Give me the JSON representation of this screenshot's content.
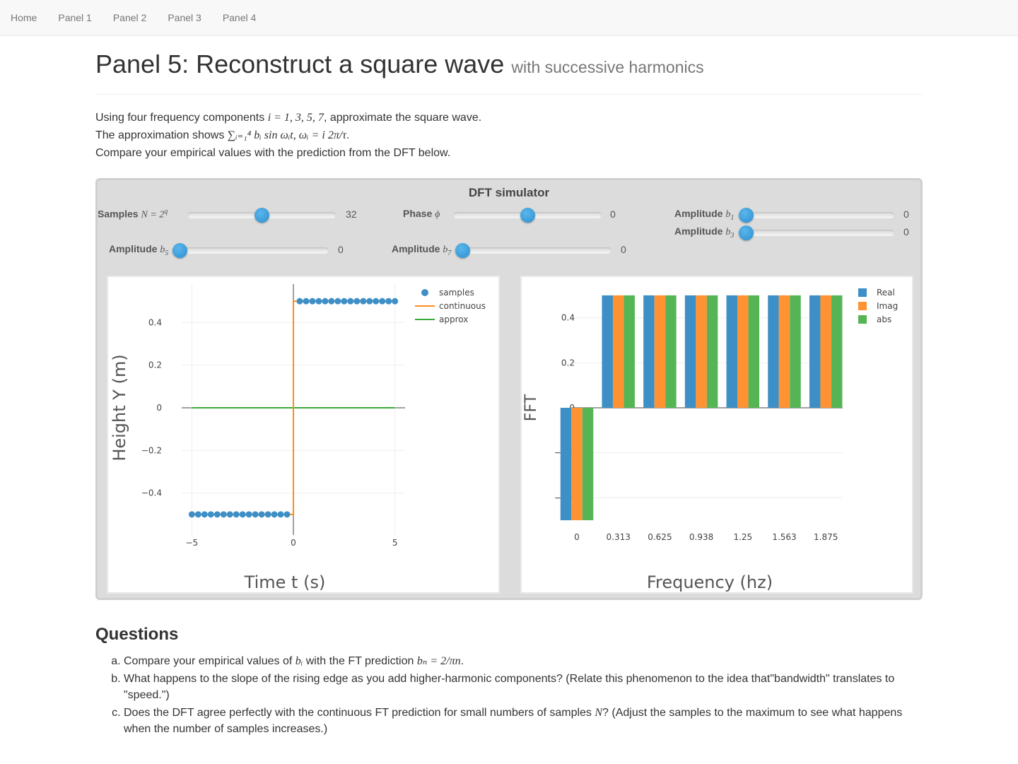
{
  "nav": {
    "items": [
      "Home",
      "Panel 1",
      "Panel 2",
      "Panel 3",
      "Panel 4"
    ]
  },
  "header": {
    "title": "Panel 5: Reconstruct a square wave",
    "subtitle": "with successive harmonics"
  },
  "intro": {
    "line1_prefix": "Using four frequency components ",
    "line1_math": "i = 1, 3, 5, 7",
    "line1_suffix": ", approximate the square wave.",
    "line2_prefix": "The approximation shows ",
    "line2_math": "∑ᵢ₌₁⁴ bᵢ sin ωᵢt, ωᵢ = i 2π/τ",
    "line2_suffix": ".",
    "line3": "Compare your empirical values with the prediction from the DFT below."
  },
  "simulator": {
    "title": "DFT simulator",
    "controls": {
      "samples": {
        "label": "Samples",
        "math": "N = 2",
        "sup": "q",
        "value": "32",
        "level": 0.5
      },
      "phase": {
        "label": "Phase",
        "math": "ϕ",
        "value": "0",
        "level": 0.5
      },
      "amp_b1": {
        "label": "Amplitude",
        "math": "b",
        "sub": "1",
        "value": "0",
        "level": 0
      },
      "amp_b3": {
        "label": "Amplitude",
        "math": "b",
        "sub": "3",
        "value": "0",
        "level": 0
      },
      "amp_b5": {
        "label": "Amplitude",
        "math": "b",
        "sub": "5",
        "value": "0",
        "level": 0
      },
      "amp_b7": {
        "label": "Amplitude",
        "math": "b",
        "sub": "7",
        "value": "0",
        "level": 0
      }
    },
    "accent_color": "#3498db"
  },
  "chart_data": [
    {
      "type": "line",
      "xlabel": "Time t (s)",
      "ylabel": "Height Y (m)",
      "xlim": [
        -5,
        5
      ],
      "ylim": [
        -0.58,
        0.58
      ],
      "xticks": [
        "−5",
        "0",
        "5"
      ],
      "yticks": [
        "0.4",
        "0.2",
        "0",
        "−0.2",
        "−0.4"
      ],
      "grid": true,
      "legend_position": "top-right",
      "series": [
        {
          "name": "samples",
          "kind": "markers",
          "color": "#3d8fc6",
          "x": [
            -5.0,
            -4.6875,
            -4.375,
            -4.0625,
            -3.75,
            -3.4375,
            -3.125,
            -2.8125,
            -2.5,
            -2.1875,
            -1.875,
            -1.5625,
            -1.25,
            -0.9375,
            -0.625,
            -0.3125,
            0.3125,
            0.625,
            0.9375,
            1.25,
            1.5625,
            1.875,
            2.1875,
            2.5,
            2.8125,
            3.125,
            3.4375,
            3.75,
            4.0625,
            4.375,
            4.6875,
            5.0
          ],
          "y": [
            -0.5,
            -0.5,
            -0.5,
            -0.5,
            -0.5,
            -0.5,
            -0.5,
            -0.5,
            -0.5,
            -0.5,
            -0.5,
            -0.5,
            -0.5,
            -0.5,
            -0.5,
            -0.5,
            0.5,
            0.5,
            0.5,
            0.5,
            0.5,
            0.5,
            0.5,
            0.5,
            0.5,
            0.5,
            0.5,
            0.5,
            0.5,
            0.5,
            0.5,
            0.5
          ]
        },
        {
          "name": "continuous",
          "kind": "line",
          "color": "#ff8c1a",
          "x": [
            -5,
            0,
            0,
            5
          ],
          "y": [
            -0.5,
            -0.5,
            0.5,
            0.5
          ]
        },
        {
          "name": "approx",
          "kind": "line",
          "color": "#3aaa3a",
          "x": [
            -5,
            5
          ],
          "y": [
            0,
            0
          ]
        }
      ]
    },
    {
      "type": "bar",
      "xlabel": "Frequency (hz)",
      "ylabel": "FFT",
      "categories": [
        "0",
        "0.313",
        "0.625",
        "0.938",
        "1.25",
        "1.563",
        "1.875"
      ],
      "yticks": [
        "0.4",
        "0.2",
        "0",
        "−0.2",
        "−0.4"
      ],
      "ylim": [
        -0.5,
        0.5
      ],
      "grid": true,
      "legend_position": "top-right",
      "series": [
        {
          "name": "Real",
          "color": "#3d8fc6",
          "values": [
            -0.5,
            0.5,
            0.5,
            0.5,
            0.5,
            0.5,
            0.5
          ]
        },
        {
          "name": "Imag",
          "color": "#ff9233",
          "values": [
            -0.5,
            0.5,
            0.5,
            0.5,
            0.5,
            0.5,
            0.5
          ]
        },
        {
          "name": "abs",
          "color": "#55b555",
          "values": [
            -0.5,
            0.5,
            0.5,
            0.5,
            0.5,
            0.5,
            0.5
          ]
        }
      ]
    }
  ],
  "questions": {
    "title": "Questions",
    "a_prefix": "Compare your empirical values of ",
    "a_math1": "bᵢ",
    "a_mid": " with the FT prediction ",
    "a_math2": "bₙ = 2/πn",
    "a_suffix": ".",
    "b": "What happens to the slope of the rising edge as you add higher-harmonic components? (Relate this phenomenon to the idea that\"bandwidth\" translates to \"speed.\")",
    "c_prefix": "Does the DFT agree perfectly with the continuous FT prediction for small numbers of samples ",
    "c_math": "N",
    "c_suffix": "? (Adjust the samples to the maximum to see what happens when the number of samples increases.)"
  }
}
